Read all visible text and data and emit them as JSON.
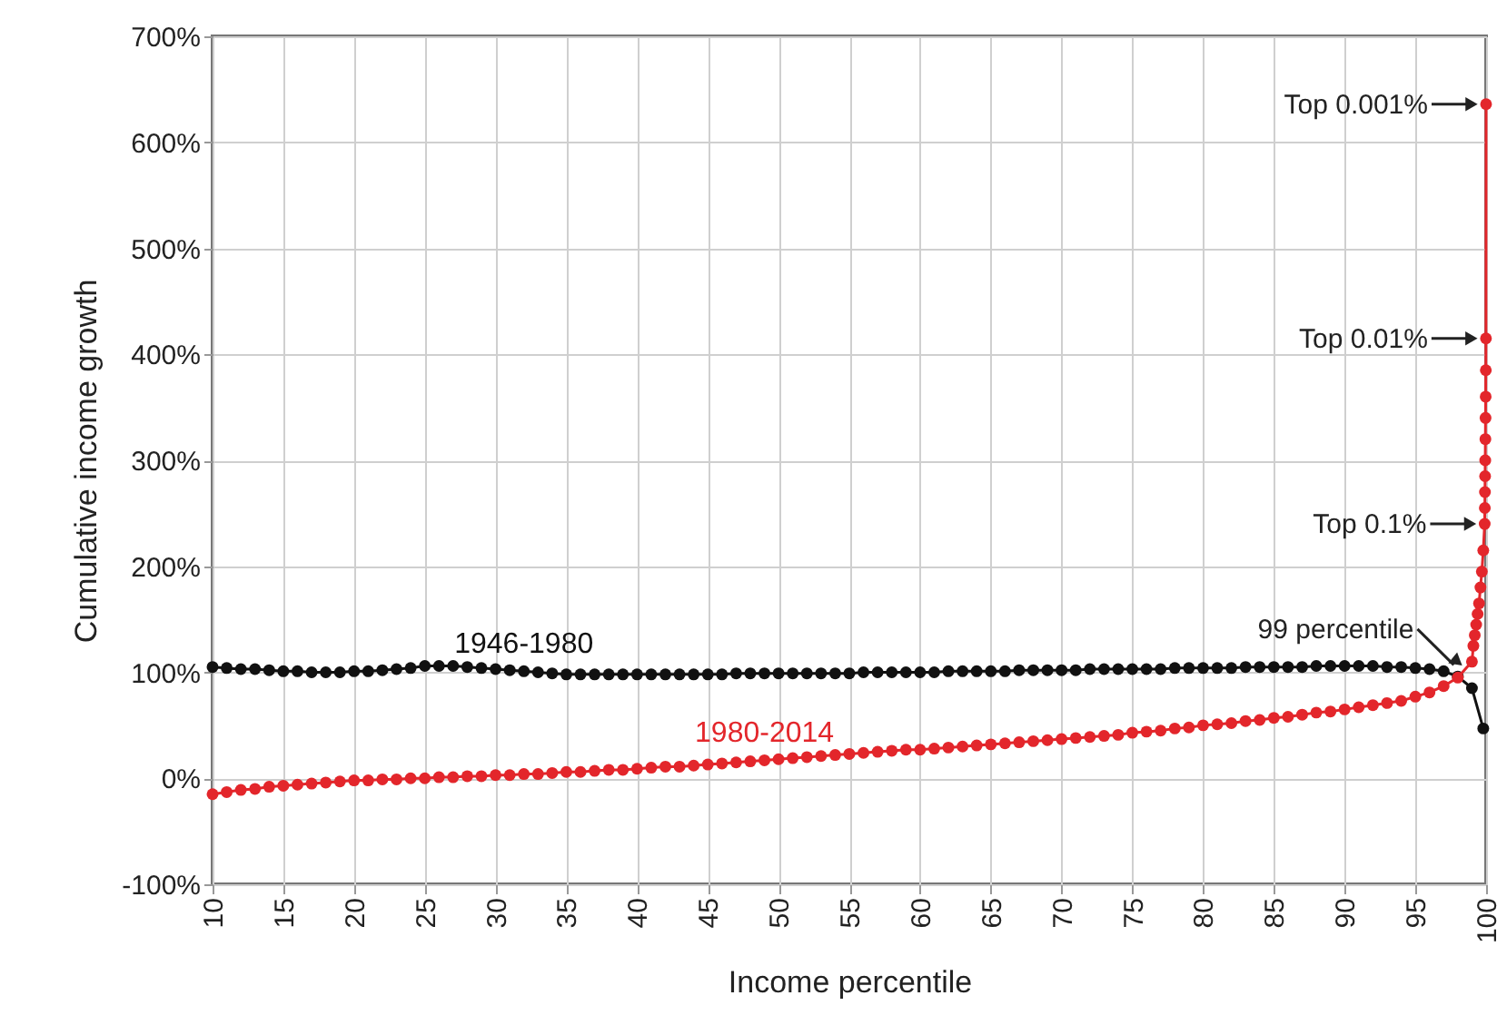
{
  "chart_data": {
    "type": "line",
    "xlabel": "Income percentile",
    "ylabel": "Cumulative income growth",
    "xlim": [
      10,
      100
    ],
    "xticks": [
      10,
      15,
      20,
      25,
      30,
      35,
      40,
      45,
      50,
      55,
      60,
      65,
      70,
      75,
      80,
      85,
      90,
      95,
      100
    ],
    "ylim": [
      -100,
      700
    ],
    "yticks": [
      {
        "value": -100,
        "label": "-100%"
      },
      {
        "value": 0,
        "label": "0%"
      },
      {
        "value": 100,
        "label": "100%"
      },
      {
        "value": 200,
        "label": "200%"
      },
      {
        "value": 300,
        "label": "300%"
      },
      {
        "value": 400,
        "label": "400%"
      },
      {
        "value": 500,
        "label": "500%"
      },
      {
        "value": 600,
        "label": "600%"
      },
      {
        "value": 700,
        "label": "700%"
      }
    ],
    "grid": true,
    "marker": "circle",
    "line_style": "solid",
    "series": [
      {
        "name": "1946-1980",
        "color": "#111111",
        "x": [
          10,
          11,
          12,
          13,
          14,
          15,
          16,
          17,
          18,
          19,
          20,
          21,
          22,
          23,
          24,
          25,
          26,
          27,
          28,
          29,
          30,
          31,
          32,
          33,
          34,
          35,
          36,
          37,
          38,
          39,
          40,
          41,
          42,
          43,
          44,
          45,
          46,
          47,
          48,
          49,
          50,
          51,
          52,
          53,
          54,
          55,
          56,
          57,
          58,
          59,
          60,
          61,
          62,
          63,
          64,
          65,
          66,
          67,
          68,
          69,
          70,
          71,
          72,
          73,
          74,
          75,
          76,
          77,
          78,
          79,
          80,
          81,
          82,
          83,
          84,
          85,
          86,
          87,
          88,
          89,
          90,
          91,
          92,
          93,
          94,
          95,
          96,
          97,
          98,
          99,
          99.8
        ],
        "values": [
          105,
          104,
          103,
          103,
          102,
          101,
          101,
          100,
          100,
          100,
          101,
          101,
          102,
          103,
          104,
          106,
          106,
          106,
          105,
          104,
          103,
          102,
          101,
          100,
          99,
          98,
          98,
          98,
          98,
          98,
          98,
          98,
          98,
          98,
          98,
          98,
          98,
          99,
          99,
          99,
          99,
          99,
          99,
          99,
          99,
          99,
          100,
          100,
          100,
          100,
          100,
          100,
          101,
          101,
          101,
          101,
          101,
          102,
          102,
          102,
          102,
          102,
          103,
          103,
          103,
          103,
          103,
          103,
          104,
          104,
          104,
          104,
          104,
          105,
          105,
          105,
          105,
          105,
          106,
          106,
          106,
          106,
          106,
          105,
          105,
          104,
          103,
          101,
          96,
          85,
          47
        ]
      },
      {
        "name": "1980-2014",
        "color": "#e3262b",
        "x": [
          10,
          11,
          12,
          13,
          14,
          15,
          16,
          17,
          18,
          19,
          20,
          21,
          22,
          23,
          24,
          25,
          26,
          27,
          28,
          29,
          30,
          31,
          32,
          33,
          34,
          35,
          36,
          37,
          38,
          39,
          40,
          41,
          42,
          43,
          44,
          45,
          46,
          47,
          48,
          49,
          50,
          51,
          52,
          53,
          54,
          55,
          56,
          57,
          58,
          59,
          60,
          61,
          62,
          63,
          64,
          65,
          66,
          67,
          68,
          69,
          70,
          71,
          72,
          73,
          74,
          75,
          76,
          77,
          78,
          79,
          80,
          81,
          82,
          83,
          84,
          85,
          86,
          87,
          88,
          89,
          90,
          91,
          92,
          93,
          94,
          95,
          96,
          97,
          98,
          99,
          99.1,
          99.2,
          99.3,
          99.4,
          99.5,
          99.6,
          99.7,
          99.8,
          99.9,
          99.91,
          99.92,
          99.93,
          99.94,
          99.95,
          99.96,
          99.97,
          99.98,
          99.99,
          99.999
        ],
        "values": [
          -15,
          -13,
          -11,
          -10,
          -8,
          -7,
          -6,
          -5,
          -4,
          -3,
          -2,
          -2,
          -1,
          -1,
          0,
          0,
          1,
          1,
          2,
          2,
          3,
          3,
          4,
          4,
          5,
          6,
          6,
          7,
          8,
          8,
          9,
          10,
          11,
          11,
          12,
          13,
          14,
          15,
          16,
          17,
          18,
          19,
          20,
          21,
          22,
          23,
          24,
          25,
          26,
          27,
          27,
          28,
          29,
          30,
          31,
          32,
          33,
          34,
          35,
          36,
          37,
          38,
          39,
          40,
          41,
          43,
          44,
          45,
          47,
          48,
          50,
          51,
          52,
          54,
          55,
          57,
          58,
          60,
          62,
          63,
          65,
          67,
          69,
          71,
          73,
          77,
          81,
          87,
          95,
          110,
          125,
          135,
          145,
          155,
          165,
          180,
          195,
          215,
          240,
          255,
          270,
          285,
          300,
          320,
          340,
          360,
          385,
          415,
          636
        ]
      }
    ],
    "annotations": [
      {
        "text": "Top 0.001%",
        "x": 99.999,
        "y": 636
      },
      {
        "text": "Top 0.01%",
        "x": 99.99,
        "y": 415
      },
      {
        "text": "Top 0.1%",
        "x": 99.9,
        "y": 240
      },
      {
        "text": "99 percentile",
        "x": 99,
        "y": 110
      }
    ]
  }
}
